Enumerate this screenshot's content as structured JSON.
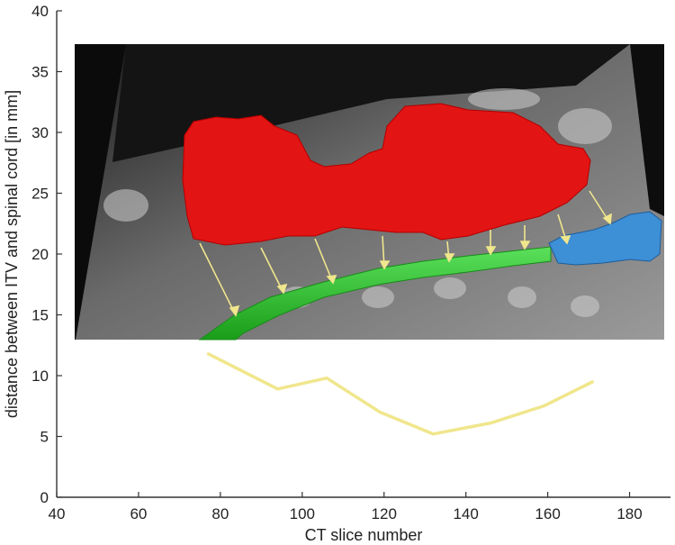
{
  "chart_data": {
    "type": "line",
    "xlabel": "CT slice number",
    "ylabel": "distance between ITV and spinal cord [in mm]",
    "xlim": [
      40,
      190
    ],
    "ylim": [
      0,
      40
    ],
    "xticks": [
      40,
      60,
      80,
      100,
      120,
      140,
      160,
      180
    ],
    "yticks": [
      0,
      5,
      10,
      15,
      20,
      25,
      30,
      35,
      40
    ],
    "grid": false,
    "series": [
      {
        "color": "#f0e68c",
        "x": [
          77,
          94,
          106,
          119,
          132,
          146,
          159,
          171
        ],
        "y": [
          11.8,
          8.9,
          9.8,
          7.0,
          5.2,
          6.1,
          7.5,
          9.5
        ]
      }
    ],
    "inset_image": {
      "description": "CT sagittal slice with 3D rendered tumor volume, spinal cord and brainstem",
      "colors": {
        "tumor": "#e31414",
        "spinal_cord": "#2ec42e",
        "brainstem": "#3d8fd6",
        "arrows": "#f0e68c"
      }
    }
  }
}
